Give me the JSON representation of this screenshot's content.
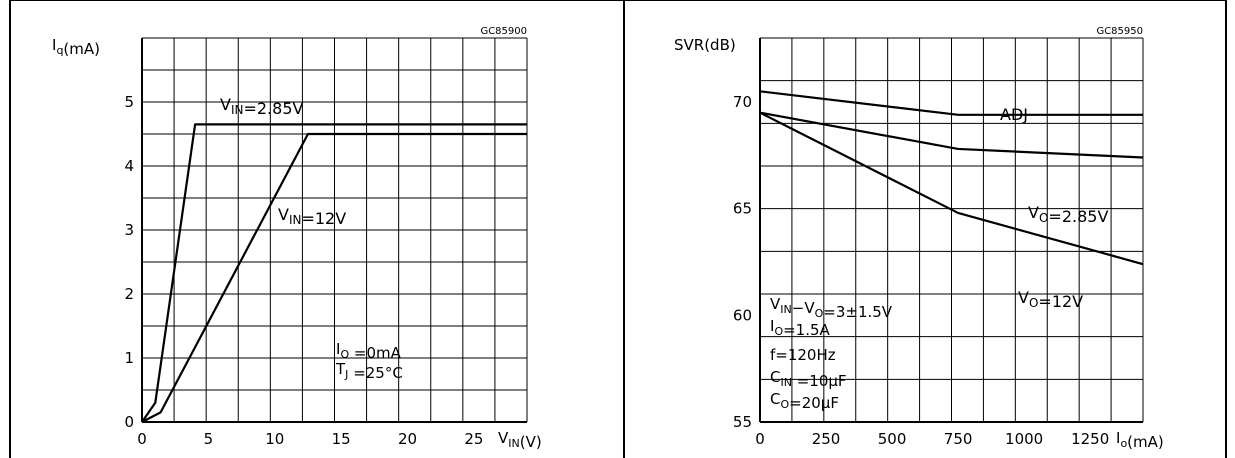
{
  "chart_data": [
    {
      "type": "line",
      "code": "GC85900",
      "ylabel": {
        "base": "I",
        "sub": "q",
        "rest": "(mA)"
      },
      "xlabel": {
        "base": "V",
        "sub": "IN",
        "rest": "(V)"
      },
      "xlim": [
        0,
        29
      ],
      "ylim": [
        0,
        6
      ],
      "x_ticks": [
        "0",
        "5",
        "10",
        "15",
        "20",
        "25"
      ],
      "x_tick_values": [
        0,
        5,
        10,
        15,
        20,
        25
      ],
      "y_ticks": [
        "0",
        "1",
        "2",
        "3",
        "4",
        "5"
      ],
      "y_tick_values": [
        0,
        1,
        2,
        3,
        4,
        5
      ],
      "grid": true,
      "series": [
        {
          "name": "V_IN=2.85V",
          "x": [
            0,
            1,
            4,
            29
          ],
          "y": [
            0,
            0.3,
            4.65,
            4.65
          ]
        },
        {
          "name": "V_IN=12V",
          "x": [
            0,
            1.4,
            12.5,
            29
          ],
          "y": [
            0,
            0.15,
            4.5,
            4.5
          ]
        }
      ],
      "series_labels": [
        {
          "base": "V",
          "sub": "IN",
          "rest": "=2.85V"
        },
        {
          "base": "V",
          "sub": "IN",
          "rest": "=12V"
        }
      ],
      "conditions": [
        {
          "base": "I",
          "sub": "O",
          "rest": " =0mA"
        },
        {
          "base": "T",
          "sub": "J",
          "rest": " =25°C"
        }
      ]
    },
    {
      "type": "line",
      "code": "GC85950",
      "ylabel": {
        "base": "SVR(dB)",
        "sub": "",
        "rest": ""
      },
      "xlabel": {
        "base": "I",
        "sub": "o",
        "rest": "(mA)"
      },
      "xlim": [
        0,
        1450
      ],
      "ylim": [
        55,
        73
      ],
      "x_ticks": [
        "0",
        "250",
        "500",
        "750",
        "1000",
        "1250"
      ],
      "x_tick_values": [
        0,
        250,
        500,
        750,
        1000,
        1250
      ],
      "y_ticks": [
        "55",
        "60",
        "65",
        "70"
      ],
      "y_tick_values": [
        55,
        60,
        65,
        70
      ],
      "grid": true,
      "series": [
        {
          "name": "ADJ",
          "x": [
            0,
            750,
            1450
          ],
          "y": [
            70.5,
            69.4,
            69.4
          ]
        },
        {
          "name": "V_O=2.85V",
          "x": [
            0,
            750,
            1450
          ],
          "y": [
            69.5,
            67.8,
            67.4
          ]
        },
        {
          "name": "V_O=12V",
          "x": [
            0,
            750,
            1450
          ],
          "y": [
            69.5,
            64.8,
            62.4
          ]
        }
      ],
      "series_labels": [
        {
          "base": "ADJ",
          "sub": "",
          "rest": ""
        },
        {
          "base": "V",
          "sub": "O",
          "rest": "=2.85V"
        },
        {
          "base": "V",
          "sub": "O",
          "rest": "=12V"
        }
      ],
      "conditions": [
        {
          "base": "V",
          "sub": "IN",
          "rest": "−V",
          "sub2": "O",
          "rest2": "=3±1.5V"
        },
        {
          "base": "I",
          "sub": "O",
          "rest": "=1.5A"
        },
        {
          "base": "f=120Hz",
          "sub": "",
          "rest": ""
        },
        {
          "base": "C",
          "sub": "IN",
          "rest": " =10μF"
        },
        {
          "base": "C",
          "sub": "O",
          "rest": "=20μF"
        }
      ]
    }
  ]
}
